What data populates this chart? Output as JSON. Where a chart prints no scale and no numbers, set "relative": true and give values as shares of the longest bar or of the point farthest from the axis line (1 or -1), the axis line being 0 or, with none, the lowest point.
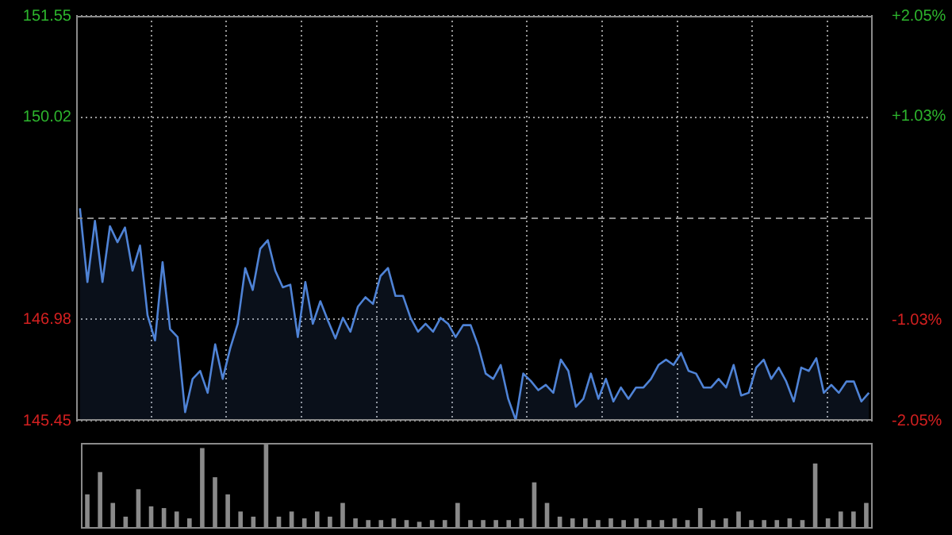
{
  "chart_data": [
    {
      "type": "area",
      "categories": [
        null,
        null,
        null,
        null,
        null,
        null,
        null,
        null,
        null,
        null,
        null,
        null,
        null,
        null,
        null,
        null,
        null,
        null,
        null,
        null,
        null,
        null,
        null,
        null,
        null,
        null,
        null,
        null,
        null,
        null,
        null,
        null,
        null,
        null,
        null,
        null,
        null,
        null,
        null,
        null,
        null,
        null,
        null,
        null,
        null,
        null,
        null,
        null,
        null,
        null,
        null,
        null,
        null,
        null,
        null,
        null,
        null,
        null,
        null,
        null,
        null,
        null,
        null,
        null,
        null,
        null,
        null,
        null,
        null,
        null,
        null,
        null,
        null,
        null,
        null,
        null,
        null,
        null,
        null,
        null,
        null,
        null,
        null,
        null,
        null,
        null,
        null,
        null,
        null,
        null,
        null,
        null,
        null,
        null,
        null,
        null,
        null,
        null,
        null,
        null,
        null,
        null,
        null,
        null,
        null,
        null
      ],
      "series": [
        {
          "color": "#4f83d6",
          "values": [
            148.65,
            147.54,
            148.46,
            147.54,
            148.38,
            148.14,
            148.36,
            147.71,
            148.09,
            147.04,
            146.66,
            147.84,
            146.83,
            146.71,
            145.58,
            146.08,
            146.2,
            145.87,
            146.6,
            146.08,
            146.54,
            146.91,
            147.75,
            147.42,
            148.04,
            148.17,
            147.71,
            147.46,
            147.5,
            146.71,
            147.54,
            146.91,
            147.25,
            146.96,
            146.69,
            147.0,
            146.79,
            147.17,
            147.31,
            147.21,
            147.63,
            147.75,
            147.33,
            147.33,
            147.0,
            146.79,
            146.91,
            146.79,
            147.0,
            146.91,
            146.71,
            146.89,
            146.89,
            146.58,
            146.16,
            146.08,
            146.29,
            145.78,
            145.46,
            146.16,
            146.05,
            145.91,
            145.99,
            145.87,
            146.37,
            146.2,
            145.66,
            145.78,
            146.16,
            145.78,
            146.08,
            145.74,
            145.95,
            145.78,
            145.95,
            145.95,
            146.08,
            146.29,
            146.37,
            146.29,
            146.47,
            146.2,
            146.16,
            145.95,
            145.95,
            146.08,
            145.95,
            146.29,
            145.83,
            145.87,
            146.25,
            146.37,
            146.08,
            146.25,
            146.04,
            145.74,
            146.25,
            146.2,
            146.39,
            145.87,
            145.99,
            145.87,
            146.04,
            146.04,
            145.74,
            145.87
          ]
        }
      ],
      "ylim": [
        145.45,
        151.55
      ],
      "yticks": [
        145.45,
        146.98,
        150.02,
        151.55
      ],
      "y2lim": [
        -2.05,
        2.05
      ],
      "y2ticks": [
        {
          "value": -2.05,
          "label": "-2.05%"
        },
        {
          "value": -1.03,
          "label": "-1.03%"
        },
        {
          "value": 1.03,
          "label": "+1.03%"
        },
        {
          "value": 2.05,
          "label": "+2.05%"
        }
      ],
      "ref_lines": [
        {
          "axis": "y",
          "value": 148.5,
          "line_style": "dashed",
          "color": "#8a8a8a"
        }
      ],
      "grid": true,
      "legend": false
    },
    {
      "type": "bar",
      "relative": true,
      "grid": false,
      "legend": false,
      "categories": [
        null,
        null,
        null,
        null,
        null,
        null,
        null,
        null,
        null,
        null,
        null,
        null,
        null,
        null,
        null,
        null,
        null,
        null,
        null,
        null,
        null,
        null,
        null,
        null,
        null,
        null,
        null,
        null,
        null,
        null,
        null,
        null,
        null,
        null,
        null,
        null,
        null,
        null,
        null,
        null,
        null,
        null,
        null,
        null,
        null,
        null,
        null,
        null,
        null,
        null,
        null,
        null,
        null,
        null,
        null,
        null,
        null,
        null,
        null,
        null,
        null,
        null
      ],
      "series": [
        {
          "color": "#8a8a8a",
          "values": [
            0.4,
            0.66,
            0.3,
            0.14,
            0.46,
            0.26,
            0.24,
            0.2,
            0.12,
            0.94,
            0.6,
            0.4,
            0.2,
            0.14,
            1,
            0.14,
            0.2,
            0.12,
            0.2,
            0.14,
            0.3,
            0.12,
            0.1,
            0.1,
            0.12,
            0.1,
            0.08,
            0.1,
            0.1,
            0.3,
            0.1,
            0.1,
            0.1,
            0.1,
            0.12,
            0.54,
            0.3,
            0.14,
            0.12,
            0.12,
            0.1,
            0.12,
            0.1,
            0.12,
            0.1,
            0.1,
            0.12,
            0.1,
            0.24,
            0.1,
            0.12,
            0.2,
            0.1,
            0.1,
            0.1,
            0.12,
            0.1,
            0.76,
            0.12,
            0.2,
            0.2,
            0.3
          ]
        }
      ]
    }
  ]
}
